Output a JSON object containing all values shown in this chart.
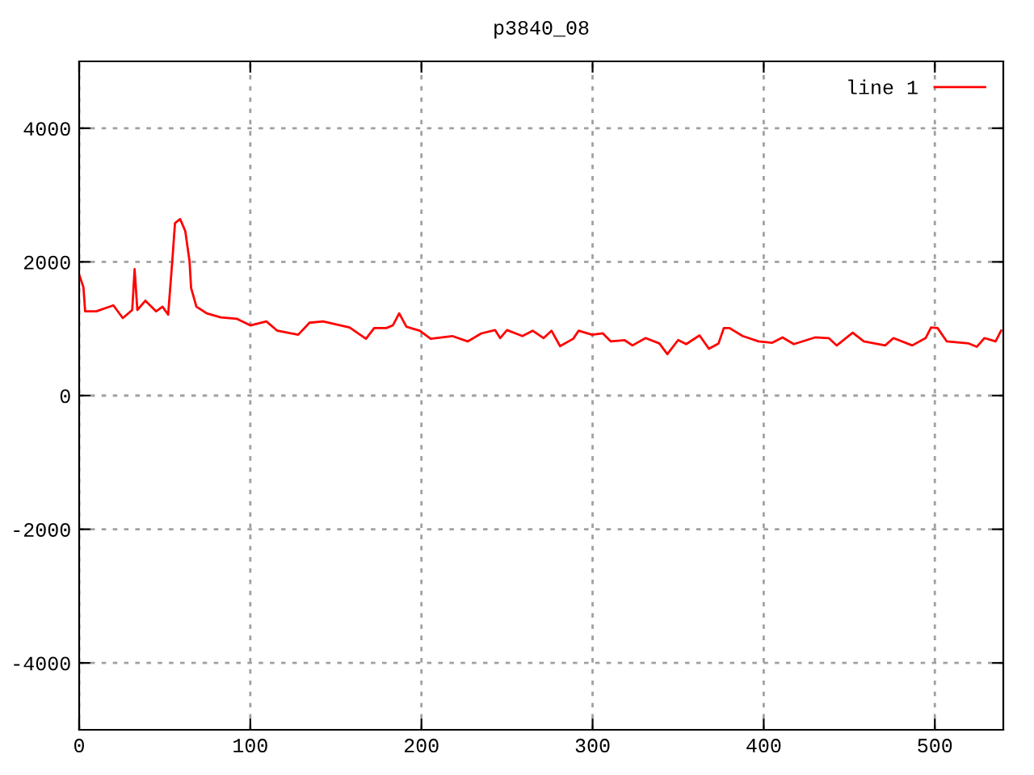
{
  "chart_data": {
    "type": "line",
    "title": "p3840_08",
    "xlim": [
      0,
      540
    ],
    "ylim": [
      -5000,
      5000
    ],
    "xticks": [
      0,
      100,
      200,
      300,
      400,
      500
    ],
    "yticks": [
      -4000,
      -2000,
      0,
      2000,
      4000
    ],
    "grid": true,
    "legend": "top right",
    "line_style": "solid",
    "marker": "none",
    "series": [
      {
        "name": "line 1",
        "color": "#ff0000",
        "x": [
          0,
          2.5,
          3.5,
          10,
          20,
          25.5,
          31,
          32.4,
          34,
          38.7,
          45,
          48.7,
          52,
          54.4,
          56,
          59,
          62,
          64.5,
          65.4,
          68.5,
          74.5,
          82.7,
          92,
          100,
          109.4,
          115.8,
          128,
          134.6,
          142.5,
          158,
          167.6,
          172.4,
          179.5,
          183.3,
          187,
          191.2,
          199,
          205.4,
          218,
          227,
          235,
          243,
          246,
          250,
          259,
          265,
          271.4,
          276,
          281,
          288.7,
          291.8,
          299.7,
          306,
          310.7,
          318.6,
          323.3,
          331,
          339,
          343.7,
          350,
          354.7,
          362.5,
          368,
          373.6,
          376.7,
          380,
          387.7,
          397,
          405,
          411,
          417.6,
          430,
          438,
          442.7,
          452,
          458.5,
          471,
          475.8,
          486.8,
          494.6,
          497.8,
          501.6,
          507,
          519.8,
          524.5,
          529,
          535.5,
          538.7
        ],
        "values": [
          1810,
          1620,
          1260,
          1260,
          1350,
          1160,
          1280,
          1890,
          1280,
          1420,
          1260,
          1330,
          1210,
          2010,
          2580,
          2640,
          2460,
          2010,
          1610,
          1330,
          1230,
          1170,
          1150,
          1050,
          1110,
          970,
          910,
          1090,
          1110,
          1020,
          850,
          1010,
          1010,
          1050,
          1230,
          1030,
          970,
          850,
          890,
          810,
          930,
          980,
          860,
          980,
          890,
          970,
          860,
          970,
          740,
          850,
          970,
          910,
          930,
          810,
          830,
          750,
          860,
          780,
          620,
          830,
          770,
          900,
          700,
          780,
          1010,
          1010,
          890,
          810,
          790,
          870,
          770,
          870,
          860,
          750,
          940,
          810,
          750,
          860,
          750,
          860,
          1020,
          1010,
          810,
          780,
          730,
          860,
          810,
          970
        ]
      }
    ]
  }
}
